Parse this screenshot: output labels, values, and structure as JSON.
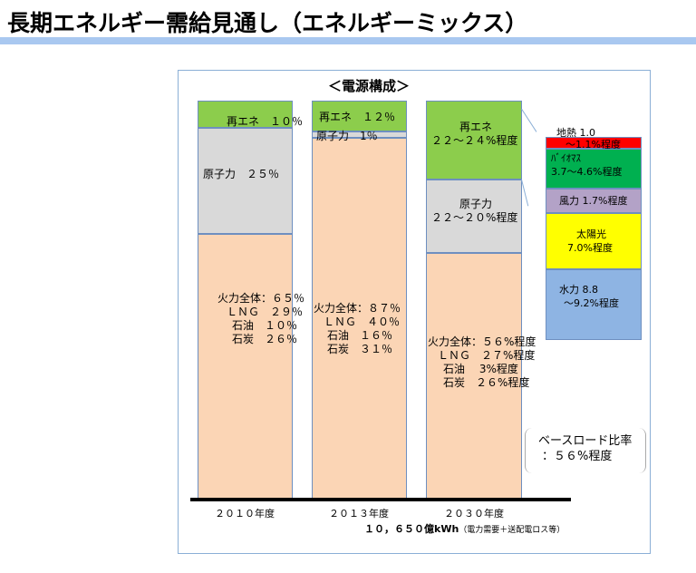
{
  "header": {
    "title": "長期エネルギー需給見通し（エネルギーミックス）"
  },
  "chart_data": {
    "type": "bar",
    "title": "＜電源構成＞",
    "categories": [
      "２０１０年度",
      "２０１３年度",
      "２０３０年度"
    ],
    "series": [
      {
        "name": "再エネ",
        "values": [
          10,
          12,
          23
        ]
      },
      {
        "name": "原子力",
        "values": [
          25,
          1,
          21
        ]
      },
      {
        "name": "火力全体",
        "values": [
          65,
          87,
          56
        ]
      }
    ],
    "labels": {
      "b2010": {
        "renew": "再エネ　１０％",
        "nuclear": "原子力　２５％",
        "fossil": [
          "火力全体：６５％",
          "ＬＮＧ　２９％",
          "石油　１０％",
          "石炭　２６％"
        ]
      },
      "b2013": {
        "renew": "再エネ　１２％",
        "nuclear": "原子力　1％",
        "fossil": [
          "火力全体：８７％",
          "ＬＮＧ　４０％",
          "石油　１６％",
          "石炭　３１％"
        ]
      },
      "b2030": {
        "renew": [
          "再エネ",
          "２２～２４%程度"
        ],
        "nuclear": [
          "原子力",
          "２２～２０%程度"
        ],
        "fossil": [
          "火力全体：５６%程度",
          "ＬＮＧ　２７%程度",
          "石油　 3%程度",
          "石炭　２６%程度"
        ]
      }
    },
    "renewable_breakdown": [
      {
        "name": "地熱",
        "lines": [
          "地熱 1.0",
          "～1.1%程度"
        ],
        "color": "#ff0000"
      },
      {
        "name": "バイオマス",
        "lines": [
          "ﾊﾞｲｵﾏｽ",
          "3.7～4.6%程度"
        ],
        "color": "#00b050"
      },
      {
        "name": "風力",
        "lines": [
          "風力 1.7%程度"
        ],
        "color": "#b3a2c7"
      },
      {
        "name": "太陽光",
        "lines": [
          "太陽光",
          "7.0%程度"
        ],
        "color": "#ffff00"
      },
      {
        "name": "水力",
        "lines": [
          "水力 8.8",
          "～9.2%程度"
        ],
        "color": "#8eb4e3"
      }
    ],
    "baseload": [
      "ベースロード比率",
      "：５６%程度"
    ],
    "total": {
      "value": "１０，６５０億kWh",
      "note": "（電力需要＋送配電ロス等）"
    }
  }
}
